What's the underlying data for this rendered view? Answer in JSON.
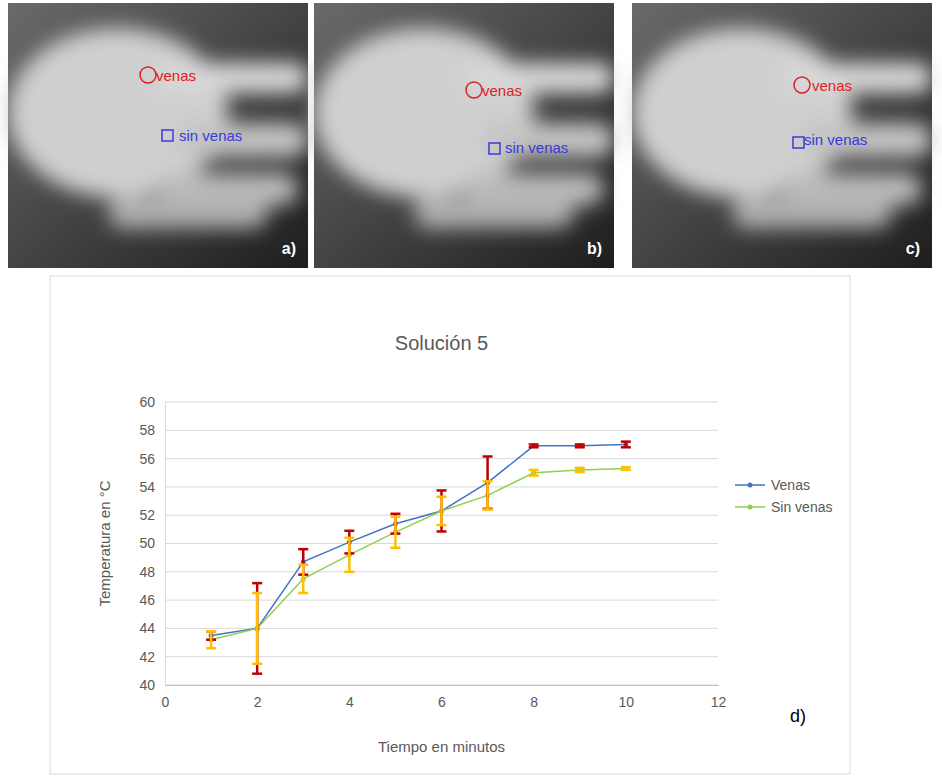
{
  "images": [
    {
      "label": "a)",
      "marks": [
        "venas",
        "sin venas"
      ]
    },
    {
      "label": "b)",
      "marks": [
        "venas",
        "sin venas"
      ]
    },
    {
      "label": "c)",
      "marks": [
        "venas",
        "sin venas"
      ]
    }
  ],
  "chart_data": {
    "type": "line",
    "title": "Solución 5",
    "panel": "d)",
    "x_label": "Tiempo en minutos",
    "y_label": "Temperatura en °C",
    "x": [
      1,
      2,
      3,
      4,
      5,
      6,
      7,
      8,
      9,
      10
    ],
    "series": [
      {
        "name": "Venas",
        "color": "#4472c4",
        "marker": "circle",
        "values": [
          43.5,
          44.0,
          48.7,
          50.1,
          51.4,
          52.3,
          54.3,
          56.9,
          56.9,
          57.0
        ],
        "errors": [
          0.3,
          3.2,
          0.9,
          0.8,
          0.7,
          1.45,
          1.85,
          0.1,
          0.1,
          0.2
        ]
      },
      {
        "name": "Sin venas",
        "color": "#8fd14f",
        "marker": "circle",
        "values": [
          43.2,
          44.0,
          47.5,
          49.2,
          50.8,
          52.3,
          53.4,
          55.0,
          55.2,
          55.3
        ],
        "errors": [
          0.6,
          2.5,
          1.0,
          1.2,
          1.1,
          1.0,
          1.0,
          0.2,
          0.15,
          0.1
        ]
      }
    ],
    "xlim": [
      0,
      12
    ],
    "xticks": [
      0,
      2,
      4,
      6,
      8,
      10,
      12
    ],
    "ylim": [
      40,
      60
    ],
    "yticks": [
      40,
      42,
      44,
      46,
      48,
      50,
      52,
      54,
      56,
      58,
      60
    ],
    "grid": true,
    "legend": "right"
  }
}
